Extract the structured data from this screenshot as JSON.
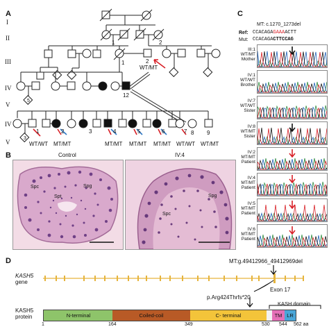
{
  "panels": {
    "A": "A",
    "B": "B",
    "C": "C",
    "D": "D"
  },
  "generations": [
    "I",
    "II",
    "III",
    "IV",
    "V",
    "IV",
    "V"
  ],
  "pedigree": {
    "ii_numbers": [
      "1",
      "2"
    ],
    "iii_numbers": [
      "1",
      "2"
    ],
    "iii_genotype": "WT/MT",
    "iv12_number": "12",
    "iv_row_numbers": [
      "1",
      "2",
      "3",
      "4",
      "5",
      "6",
      "7",
      "8",
      "9"
    ],
    "iv_genotypes": {
      "iv1": "WT/WT",
      "iv2": "MT/MT",
      "iv4": "MT/MT",
      "iv5": "MT/MT",
      "iv6": "MT/MT",
      "iv7": "WT/WT",
      "iv8": "WT/MT"
    },
    "diamond_number": "5",
    "v_diamond_number": "3"
  },
  "histology": {
    "control_title": "Control",
    "patient_title": "IV:4",
    "labels_control": [
      "Spc",
      "Spg",
      "Spt"
    ],
    "labels_patient": [
      "Spg",
      "Spc"
    ]
  },
  "chromatogram": {
    "mutation": "MT: c.1270_1273del",
    "ref_label": "Ref:",
    "ref_seq_a": "CCACAGA",
    "ref_seq_b": "GAAA",
    "ref_seq_c": "ACTT",
    "mut_label": "Mut:",
    "mut_seq_a": "CCACAGA",
    "mut_seq_b": "CTTCCAG",
    "samples": [
      {
        "id": "III:1",
        "genotype": "WT/MT",
        "role": "Mother",
        "arrow": "black"
      },
      {
        "id": "IV:1",
        "genotype": "WT/WT",
        "role": "Brother",
        "arrow": "none"
      },
      {
        "id": "IV:7",
        "genotype": "WT/WT",
        "role": "Sister",
        "arrow": "none"
      },
      {
        "id": "IV:8",
        "genotype": "WT/MT",
        "role": "Sister",
        "arrow": "black"
      },
      {
        "id": "IV:2",
        "genotype": "MT/MT",
        "role": "Patient",
        "arrow": "red"
      },
      {
        "id": "IV:4",
        "genotype": "MT/MT",
        "role": "Patient",
        "arrow": "red"
      },
      {
        "id": "IV:5",
        "genotype": "MT/MT",
        "role": "Patient",
        "arrow": "red"
      },
      {
        "id": "IV:6",
        "genotype": "MT/MT",
        "role": "Patient",
        "arrow": "red"
      }
    ]
  },
  "gene": {
    "name_italic": "KASH5",
    "name_suffix": "gene",
    "variant": "MT:g.49412966_49412969del",
    "exon": "Exon 17",
    "protein_change": "p.Arg424Thrfs*20",
    "protein_name": "KASH5",
    "protein_suffix": "protein",
    "kash_domain": "KASH domain",
    "domains": [
      {
        "name": "N-terminal",
        "color": "#8ec46a"
      },
      {
        "name": "Coiled-coil",
        "color": "#b85a26"
      },
      {
        "name": "C- terminal",
        "color": "#f3c43a"
      },
      {
        "name": "",
        "color": "#f2f2f2"
      },
      {
        "name": "TM",
        "color": "#e56fb7"
      },
      {
        "name": "LR",
        "color": "#4aa6d8"
      }
    ],
    "positions": [
      "1",
      "164",
      "349",
      "530",
      "544",
      "562 aa"
    ]
  },
  "colors": {
    "arrow_red": "#d81f26",
    "arrow_blue": "#2f78c4",
    "gene_line": "#e6b43c"
  }
}
